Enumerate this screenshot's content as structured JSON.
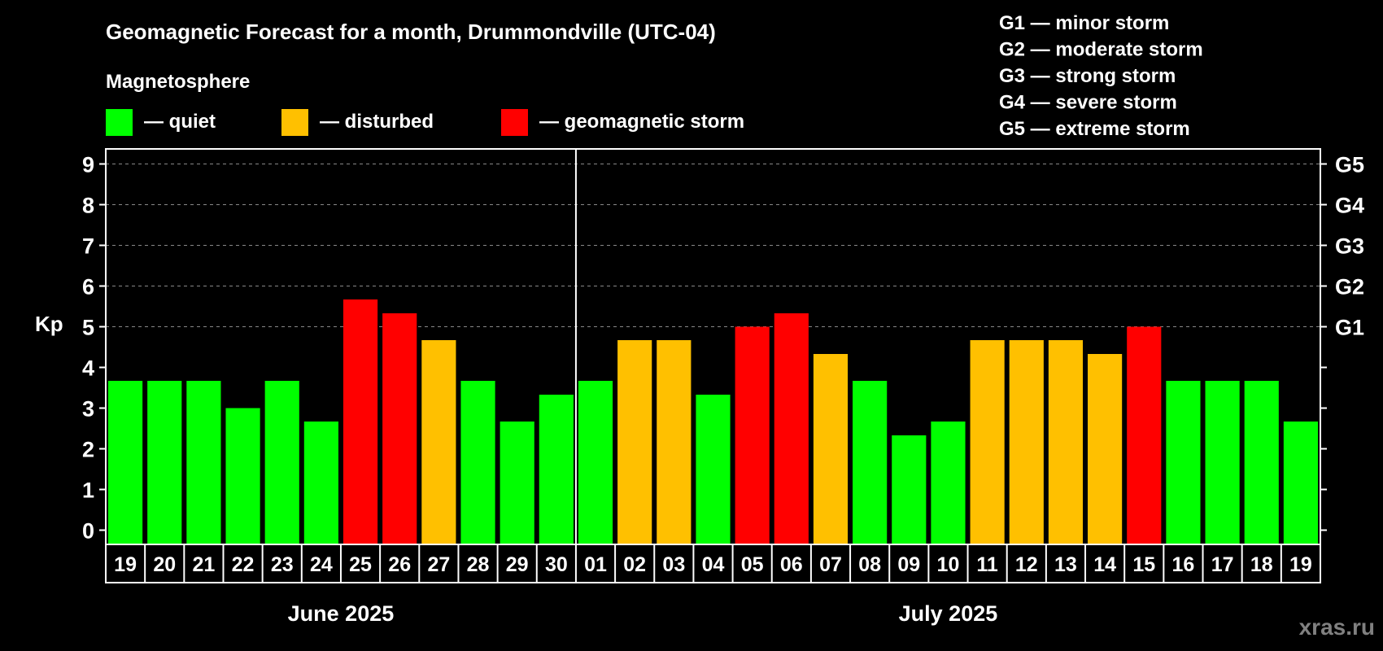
{
  "chart_data": {
    "type": "bar",
    "title": "Geomagnetic Forecast for a month, Drummondville (UTC-04)",
    "legend_title": "Magnetosphere",
    "legend": [
      {
        "label": "— quiet",
        "color": "#00ff00"
      },
      {
        "label": "— disturbed",
        "color": "#ffc000"
      },
      {
        "label": "— geomagnetic storm",
        "color": "#ff0000"
      }
    ],
    "g_scale": [
      "G1 — minor storm",
      "G2 — moderate storm",
      "G3 — strong storm",
      "G4 — severe storm",
      "G5 — extreme storm"
    ],
    "right_ticks": [
      {
        "kp": 5,
        "label": "G1"
      },
      {
        "kp": 6,
        "label": "G2"
      },
      {
        "kp": 7,
        "label": "G3"
      },
      {
        "kp": 8,
        "label": "G4"
      },
      {
        "kp": 9,
        "label": "G5"
      }
    ],
    "ylabel": "Kp",
    "ylim": [
      0,
      9
    ],
    "yticks": [
      "0",
      "1",
      "2",
      "3",
      "4",
      "5",
      "6",
      "7",
      "8",
      "9"
    ],
    "grid": true,
    "months": [
      {
        "label": "June 2025",
        "days": 12
      },
      {
        "label": "July 2025",
        "days": 19
      }
    ],
    "categories": [
      "19",
      "20",
      "21",
      "22",
      "23",
      "24",
      "25",
      "26",
      "27",
      "28",
      "29",
      "30",
      "01",
      "02",
      "03",
      "04",
      "05",
      "06",
      "07",
      "08",
      "09",
      "10",
      "11",
      "12",
      "13",
      "14",
      "15",
      "16",
      "17",
      "18",
      "19"
    ],
    "values": [
      3.67,
      3.67,
      3.67,
      3.0,
      3.67,
      2.67,
      5.67,
      5.33,
      4.67,
      3.67,
      2.67,
      3.33,
      3.67,
      4.67,
      4.67,
      3.33,
      5.0,
      5.33,
      4.33,
      3.67,
      2.33,
      2.67,
      4.67,
      4.67,
      4.67,
      4.33,
      5.0,
      3.67,
      3.67,
      3.67,
      2.67
    ],
    "status": [
      "quiet",
      "quiet",
      "quiet",
      "quiet",
      "quiet",
      "quiet",
      "storm",
      "storm",
      "disturbed",
      "quiet",
      "quiet",
      "quiet",
      "quiet",
      "disturbed",
      "disturbed",
      "quiet",
      "storm",
      "storm",
      "disturbed",
      "quiet",
      "quiet",
      "quiet",
      "disturbed",
      "disturbed",
      "disturbed",
      "disturbed",
      "storm",
      "quiet",
      "quiet",
      "quiet",
      "quiet"
    ],
    "colors": {
      "quiet": "#00ff00",
      "disturbed": "#ffc000",
      "storm": "#ff0000"
    }
  },
  "watermark": "xras.ru"
}
